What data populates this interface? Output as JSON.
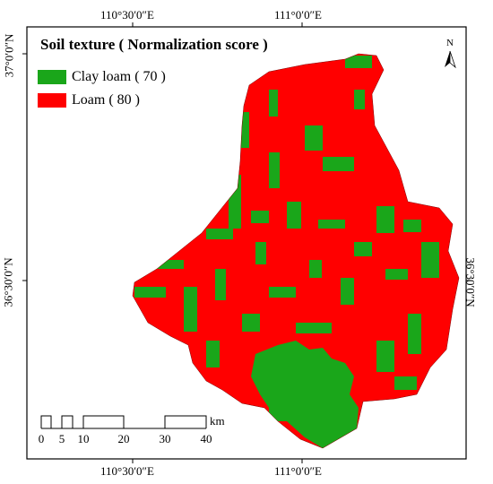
{
  "legend": {
    "title": "Soil texture  ( Normalization score )",
    "items": [
      {
        "label": "Clay loam ( 70 )",
        "color": "#1aa61a"
      },
      {
        "label": "Loam ( 80 )",
        "color": "#ff0000"
      }
    ]
  },
  "graticule": {
    "top_lon": [
      "110°30′0″E",
      "111°0′0″E"
    ],
    "bottom_lon": [
      "110°30′0″E",
      "111°0′0″E"
    ],
    "left_lat": [
      "37°0′0″N",
      "36°30′0″N"
    ],
    "right_lat": [
      "36°30′0″N"
    ]
  },
  "north_arrow": {
    "label": "N",
    "icon": "north-arrow-icon"
  },
  "scale_bar": {
    "ticks": [
      "0",
      "5",
      "10",
      "20",
      "30",
      "40"
    ],
    "unit": "km"
  },
  "colors": {
    "clay_loam": "#1aa61a",
    "loam": "#ff0000",
    "frame": "#000000"
  }
}
